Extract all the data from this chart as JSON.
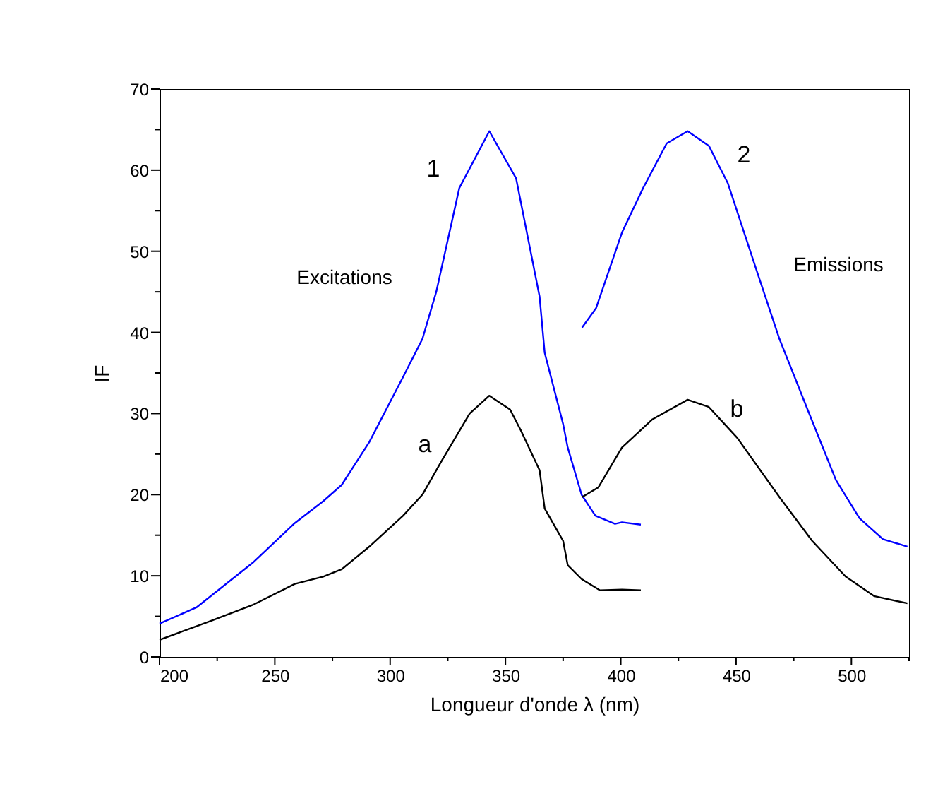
{
  "chart_data": {
    "type": "line",
    "xlabel": "Longueur d'onde λ (nm)",
    "ylabel": "IF",
    "xlim": [
      200,
      525
    ],
    "ylim": [
      0,
      70
    ],
    "xticks": [
      200,
      {
        "value": 225,
        "label": null
      },
      250,
      {
        "value": 275,
        "label": null
      },
      300,
      {
        "value": 325,
        "label": null
      },
      350,
      {
        "value": 375,
        "label": null
      },
      400,
      {
        "value": 425,
        "label": null
      },
      450,
      {
        "value": 475,
        "label": null
      },
      500,
      {
        "value": 525,
        "label": null
      }
    ],
    "yticks": [
      0,
      {
        "value": 5,
        "label": null
      },
      10,
      {
        "value": 15,
        "label": null
      },
      20,
      {
        "value": 25,
        "label": null
      },
      30,
      {
        "value": 35,
        "label": null
      },
      40,
      {
        "value": 45,
        "label": null
      },
      50,
      {
        "value": 55,
        "label": null
      },
      60,
      {
        "value": 65,
        "label": null
      },
      70
    ],
    "grid": false,
    "marker": "none",
    "line_style": "solid",
    "series": [
      {
        "color": "#0000ff",
        "x": [
          200,
          216,
          240.4,
          258.7,
          271,
          279,
          291,
          305.6,
          314,
          320,
          330,
          343,
          354.6,
          364.8,
          367,
          375,
          377,
          383,
          389,
          397.5,
          400.5,
          408.7
        ],
        "values": [
          4.1,
          6.1,
          11.6,
          16.5,
          19.2,
          21.2,
          26.5,
          34.5,
          39.2,
          45,
          57.8,
          64.8,
          59,
          44.4,
          37.5,
          28.7,
          25.8,
          20,
          17.4,
          16.4,
          16.6,
          16.3
        ]
      },
      {
        "color": "#000000",
        "x": [
          200,
          222,
          240.4,
          258.7,
          271,
          279,
          291,
          305.6,
          314,
          322,
          334.5,
          343,
          352,
          356.7,
          364.8,
          367,
          375,
          377,
          383,
          391,
          400.5,
          408.7
        ],
        "values": [
          2.1,
          4.4,
          6.4,
          9,
          9.9,
          10.8,
          13.6,
          17.4,
          20,
          24,
          30,
          32.2,
          30.5,
          27.9,
          23,
          18.3,
          14.3,
          11.3,
          9.6,
          8.2,
          8.3,
          8.2
        ]
      },
      {
        "color": "#0000ff",
        "x": [
          383.2,
          389.3,
          400.5,
          409.7,
          419.9,
          429,
          438.2,
          446.4,
          458.6,
          468.8,
          481,
          493.3,
          503.5,
          513.7,
          524.3
        ],
        "values": [
          40.6,
          43,
          52.3,
          57.8,
          63.3,
          64.8,
          63,
          58.4,
          47.9,
          39.2,
          30.5,
          21.8,
          17.1,
          14.5,
          13.6
        ]
      },
      {
        "color": "#000000",
        "x": [
          383.2,
          390.3,
          400.5,
          413.8,
          429,
          438.2,
          450.5,
          468.8,
          483,
          497.5,
          509.8,
          524.3
        ],
        "values": [
          19.7,
          20.9,
          25.8,
          29.3,
          31.7,
          30.8,
          27,
          19.7,
          14.3,
          9.9,
          7.5,
          6.6
        ]
      }
    ],
    "annotations": [
      "1",
      "Excitations",
      "a",
      "2",
      "Emissions",
      "b"
    ]
  }
}
